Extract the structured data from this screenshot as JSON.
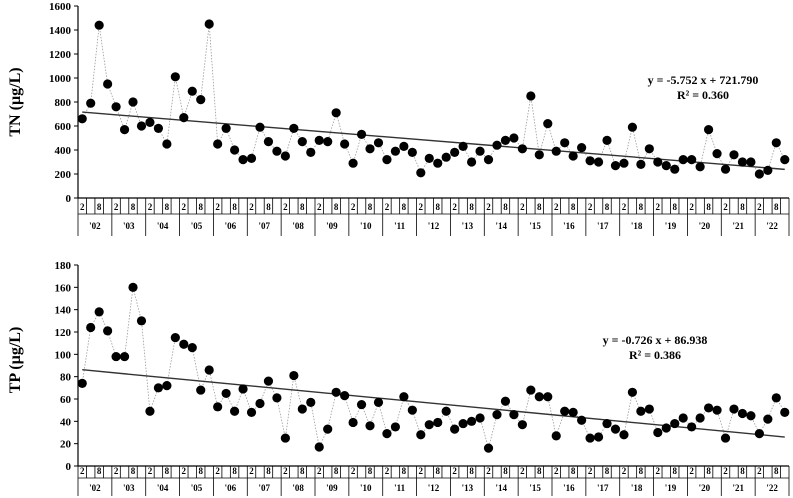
{
  "chart_data": [
    {
      "type": "scatter",
      "ylabel": "TN (µg/L)",
      "ylim": [
        0,
        1600
      ],
      "yticks": [
        "0",
        "200",
        "400",
        "600",
        "800",
        "1000",
        "1200",
        "1400",
        "1600"
      ],
      "season_labels": [
        "2",
        "8"
      ],
      "year_labels": [
        "'02",
        "'03",
        "'04",
        "'05",
        "'06",
        "'07",
        "'08",
        "'09",
        "'10",
        "'11",
        "'12",
        "'13",
        "'14",
        "'15",
        "'16",
        "'17",
        "'18",
        "'19",
        "'20",
        "'21",
        "'22"
      ],
      "equation": "y = -5.752 x + 721.790",
      "r2": "R² = 0.360",
      "trend": {
        "slope": -5.752,
        "intercept": 721.79
      },
      "grid": false,
      "values": [
        660,
        790,
        1440,
        950,
        760,
        570,
        800,
        600,
        630,
        580,
        450,
        1010,
        670,
        890,
        820,
        1450,
        450,
        580,
        400,
        320,
        330,
        590,
        470,
        390,
        350,
        580,
        470,
        380,
        480,
        470,
        710,
        450,
        290,
        530,
        410,
        460,
        320,
        390,
        430,
        380,
        210,
        330,
        290,
        340,
        380,
        430,
        300,
        390,
        320,
        440,
        480,
        500,
        410,
        850,
        360,
        620,
        390,
        460,
        350,
        420,
        310,
        300,
        480,
        270,
        290,
        590,
        280,
        410,
        300,
        270,
        240,
        320,
        320,
        260,
        570,
        370,
        240,
        360,
        300,
        300,
        200,
        230,
        460,
        320
      ]
    },
    {
      "type": "scatter",
      "ylabel": "TP (µg/L)",
      "ylim": [
        0,
        180
      ],
      "yticks": [
        "0",
        "20",
        "40",
        "60",
        "80",
        "100",
        "120",
        "140",
        "160",
        "180"
      ],
      "season_labels": [
        "2",
        "8"
      ],
      "year_labels": [
        "'02",
        "'03",
        "'04",
        "'05",
        "'06",
        "'07",
        "'08",
        "'09",
        "'10",
        "'11",
        "'12",
        "'13",
        "'14",
        "'15",
        "'16",
        "'17",
        "'18",
        "'19",
        "'20",
        "'21",
        "'22"
      ],
      "equation": "y = -0.726 x + 86.938",
      "r2": "R² = 0.386",
      "trend": {
        "slope": -0.726,
        "intercept": 86.938
      },
      "grid": false,
      "values": [
        74,
        124,
        138,
        121,
        98,
        98,
        160,
        130,
        49,
        70,
        72,
        115,
        109,
        106,
        68,
        86,
        53,
        65,
        49,
        69,
        48,
        56,
        76,
        61,
        25,
        81,
        51,
        57,
        17,
        33,
        66,
        63,
        39,
        55,
        36,
        57,
        29,
        35,
        62,
        50,
        28,
        37,
        39,
        49,
        33,
        38,
        40,
        43,
        16,
        46,
        58,
        46,
        37,
        68,
        62,
        62,
        27,
        49,
        48,
        41,
        25,
        26,
        38,
        33,
        28,
        66,
        49,
        51,
        30,
        34,
        38,
        43,
        35,
        43,
        52,
        50,
        25,
        51,
        47,
        45,
        29,
        42,
        61,
        48
      ]
    }
  ]
}
